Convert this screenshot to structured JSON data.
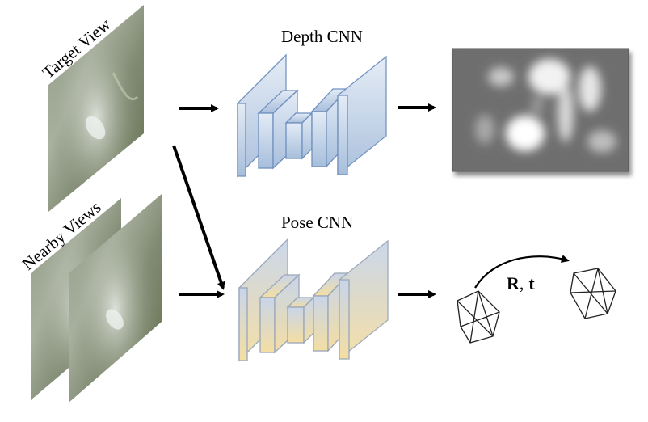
{
  "inputs": {
    "target_label": "Target View",
    "nearby_label": "Nearby Views"
  },
  "networks": {
    "depth_title": "Depth CNN",
    "pose_title": "Pose CNN"
  },
  "pose_output": {
    "motion_label_R": "R",
    "motion_label_sep": ",",
    "motion_label_t": "t"
  },
  "colors": {
    "depth_net_top": "#dde7f4",
    "depth_net_bottom": "#a9c0dc",
    "depth_net_stroke": "#6f90bf",
    "pose_net_top": "#c9d6ea",
    "pose_net_bottom": "#f2dba0",
    "pose_net_stroke": "#9aa6b8",
    "arrow": "#000000"
  }
}
